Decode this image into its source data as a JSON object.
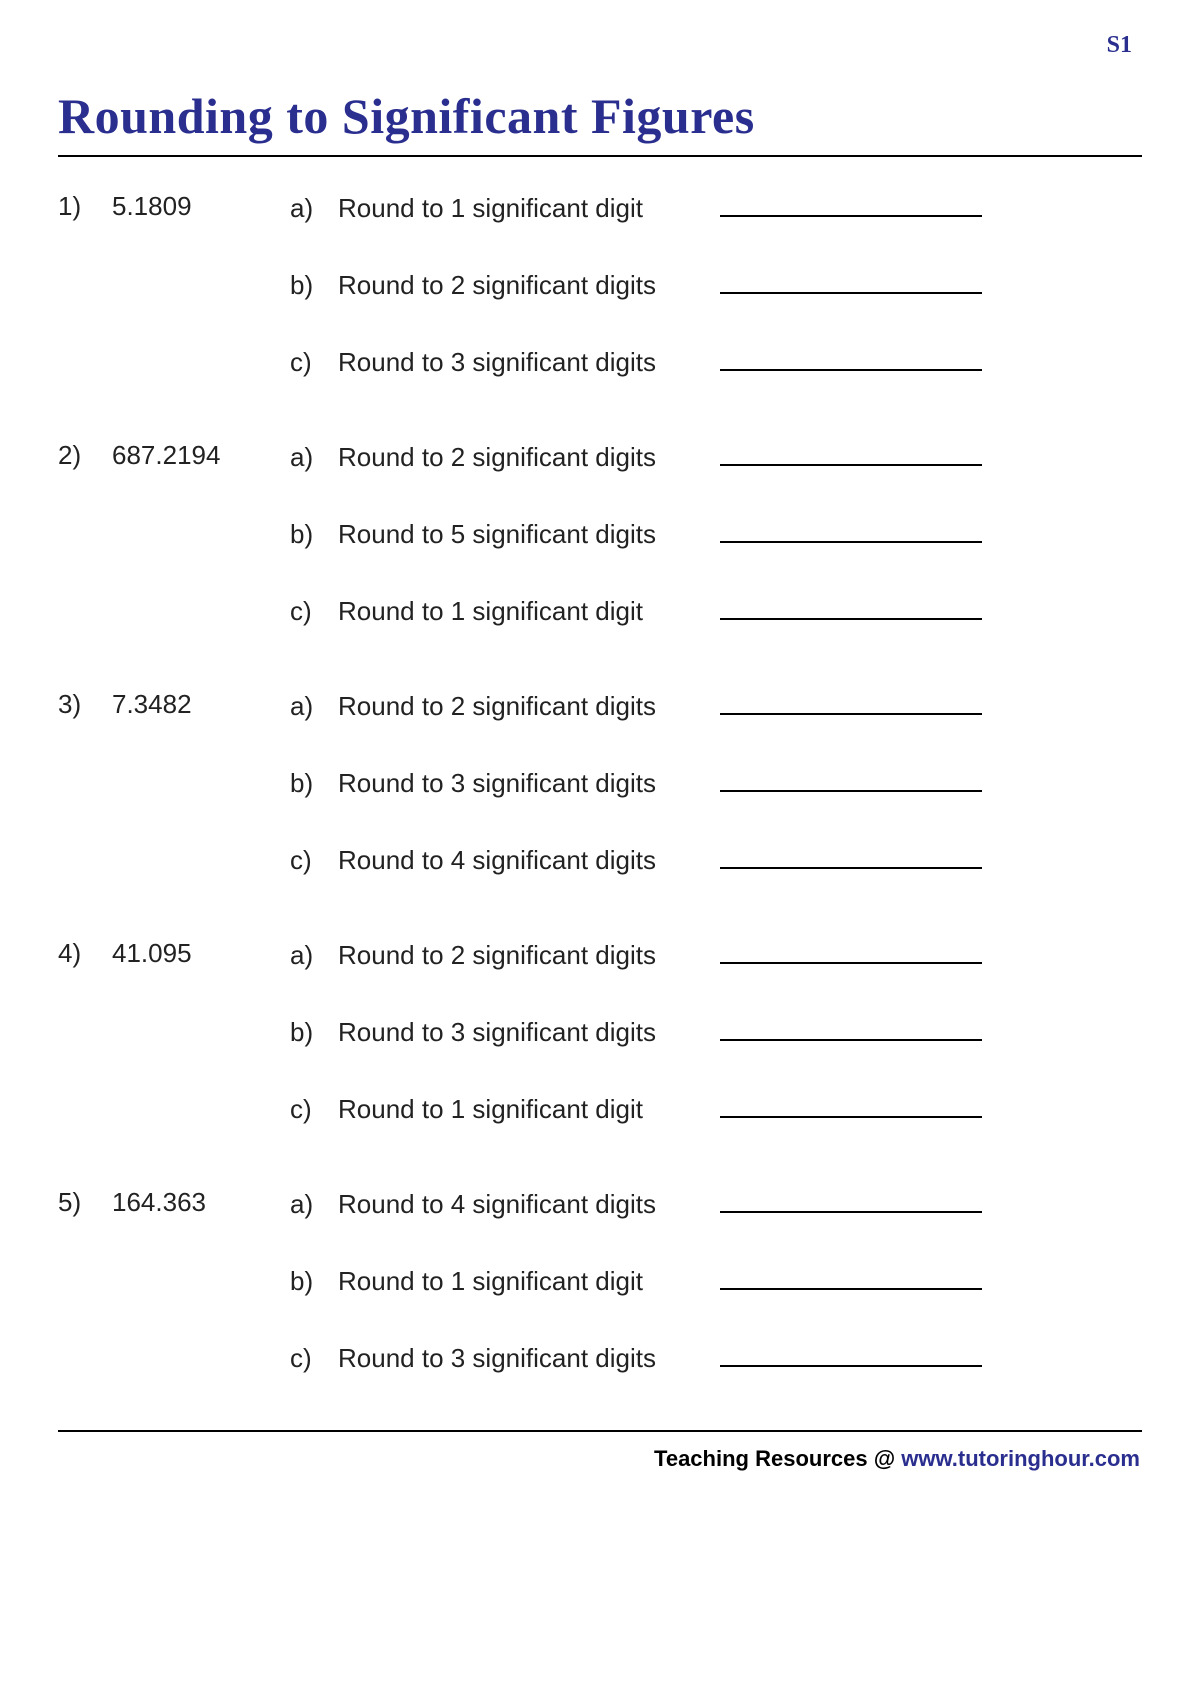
{
  "page_label": "S1",
  "title": "Rounding to Significant Figures",
  "problems": [
    {
      "num": "1)",
      "value": "5.1809",
      "subs": [
        {
          "label": "a)",
          "text": "Round to 1 significant digit"
        },
        {
          "label": "b)",
          "text": "Round to 2 significant digits"
        },
        {
          "label": "c)",
          "text": "Round to 3 significant digits"
        }
      ]
    },
    {
      "num": "2)",
      "value": "687.2194",
      "subs": [
        {
          "label": "a)",
          "text": "Round to 2 significant digits"
        },
        {
          "label": "b)",
          "text": "Round to 5 significant digits"
        },
        {
          "label": "c)",
          "text": "Round to 1 significant digit"
        }
      ]
    },
    {
      "num": "3)",
      "value": "7.3482",
      "subs": [
        {
          "label": "a)",
          "text": "Round to 2 significant digits"
        },
        {
          "label": "b)",
          "text": "Round to 3 significant digits"
        },
        {
          "label": "c)",
          "text": "Round to 4 significant digits"
        }
      ]
    },
    {
      "num": "4)",
      "value": "41.095",
      "subs": [
        {
          "label": "a)",
          "text": "Round to 2 significant digits"
        },
        {
          "label": "b)",
          "text": "Round to 3 significant digits"
        },
        {
          "label": "c)",
          "text": "Round to 1 significant digit"
        }
      ]
    },
    {
      "num": "5)",
      "value": "164.363",
      "subs": [
        {
          "label": "a)",
          "text": "Round to 4 significant digits"
        },
        {
          "label": "b)",
          "text": "Round to 1 significant digit"
        },
        {
          "label": "c)",
          "text": "Round to 3 significant digits"
        }
      ]
    }
  ],
  "footer_prefix": "Teaching Resources @ ",
  "footer_link": "www.tutoringhour.com",
  "colors": {
    "accent": "#2a2e8f",
    "text": "#000000",
    "background": "#ffffff"
  }
}
